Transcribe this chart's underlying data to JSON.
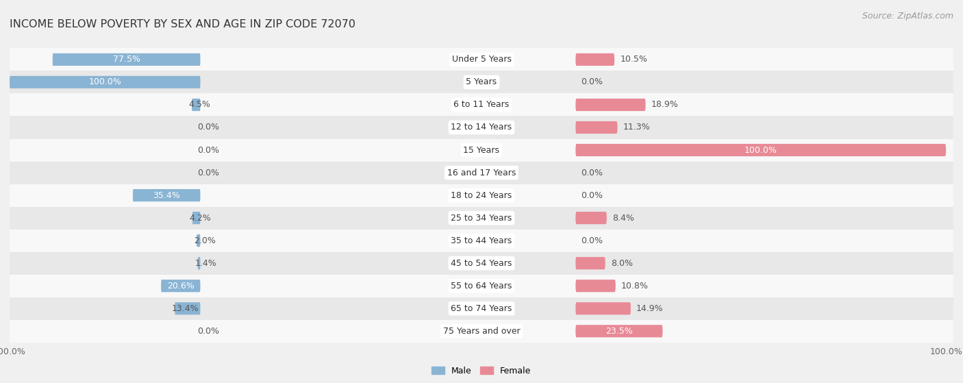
{
  "title": "INCOME BELOW POVERTY BY SEX AND AGE IN ZIP CODE 72070",
  "source": "Source: ZipAtlas.com",
  "categories": [
    "Under 5 Years",
    "5 Years",
    "6 to 11 Years",
    "12 to 14 Years",
    "15 Years",
    "16 and 17 Years",
    "18 to 24 Years",
    "25 to 34 Years",
    "35 to 44 Years",
    "45 to 54 Years",
    "55 to 64 Years",
    "65 to 74 Years",
    "75 Years and over"
  ],
  "male_values": [
    77.5,
    100.0,
    4.5,
    0.0,
    0.0,
    0.0,
    35.4,
    4.2,
    2.0,
    1.4,
    20.6,
    13.4,
    0.0
  ],
  "female_values": [
    10.5,
    0.0,
    18.9,
    11.3,
    100.0,
    0.0,
    0.0,
    8.4,
    0.0,
    8.0,
    10.8,
    14.9,
    23.5
  ],
  "male_color": "#8ab4d4",
  "female_color": "#e88a96",
  "male_label": "Male",
  "female_label": "Female",
  "bg_color": "#f0f0f0",
  "row_bg_light": "#f8f8f8",
  "row_bg_dark": "#e8e8e8",
  "max_value": 100.0,
  "bar_height": 0.55,
  "title_fontsize": 11.5,
  "label_fontsize": 9,
  "cat_fontsize": 9,
  "axis_fontsize": 9,
  "source_fontsize": 9
}
